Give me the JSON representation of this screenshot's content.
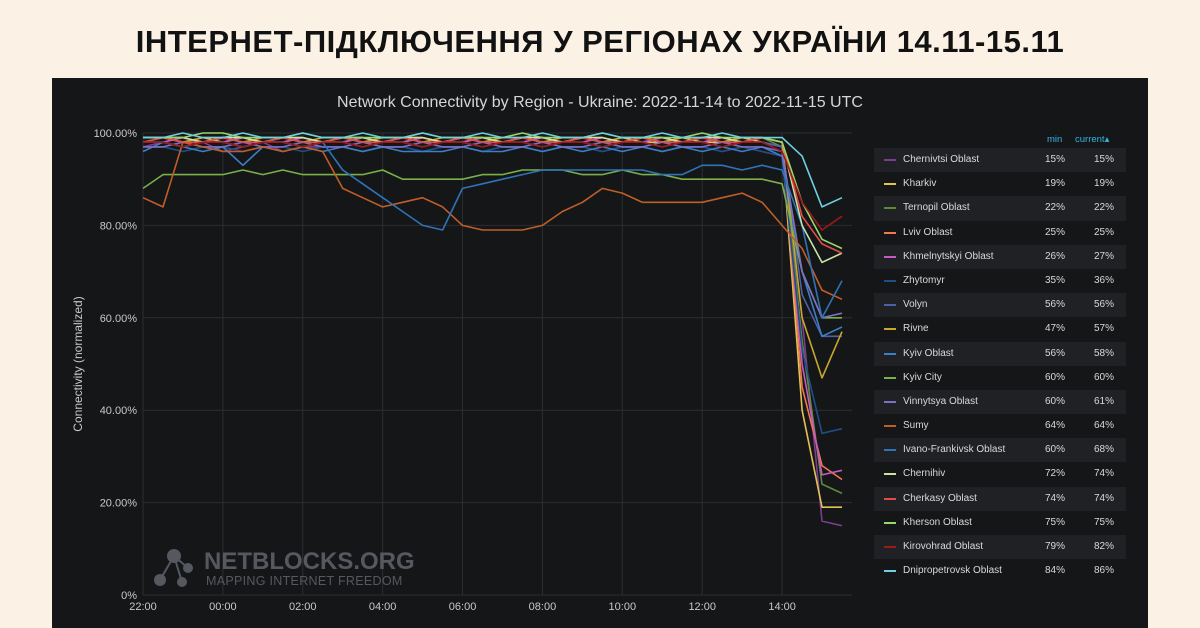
{
  "headline": "ІНТЕРНЕТ-ПІДКЛЮЧЕННЯ У РЕГІОНАХ УКРАЇНИ 14.11-15.11",
  "watermark": {
    "name": "NETBLOCKS.ORG",
    "tagline": "MAPPING INTERNET FREEDOM"
  },
  "legend_headers": {
    "min": "min",
    "current": "current▴"
  },
  "chart_data": {
    "type": "line",
    "title": "Network Connectivity by Region - Ukraine: 2022-11-14 to 2022-11-15 UTC",
    "xlabel": "",
    "ylabel": "Connectivity (normalized)",
    "ylim": [
      0,
      100
    ],
    "yticks": [
      0,
      20,
      40,
      60,
      80,
      100
    ],
    "ytick_labels": [
      "0%",
      "20.00%",
      "40.00%",
      "60.00%",
      "80.00%",
      "100.00%"
    ],
    "xlim": [
      0,
      17.75
    ],
    "xticks": [
      0,
      2,
      4,
      6,
      8,
      10,
      12,
      14,
      16
    ],
    "xtick_labels": [
      "22:00",
      "00:00",
      "02:00",
      "04:00",
      "06:00",
      "08:00",
      "10:00",
      "12:00",
      "14:00"
    ],
    "x_unit": "hours since 2022-11-14 22:00 UTC",
    "grid": true,
    "legend_placement": "right",
    "x": [
      0,
      0.5,
      1,
      1.5,
      2,
      2.5,
      3,
      3.5,
      4,
      4.5,
      5,
      5.5,
      6,
      6.5,
      7,
      7.5,
      8,
      8.5,
      9,
      9.5,
      10,
      10.5,
      11,
      11.5,
      12,
      12.5,
      13,
      13.5,
      14,
      14.5,
      15,
      15.5,
      16,
      16.5,
      17,
      17.5
    ],
    "series": [
      {
        "name": "Chernivtsi Oblast",
        "color": "#7a3e8e",
        "min": "15%",
        "current": "15%",
        "values": [
          97,
          98,
          97,
          98,
          96,
          97,
          98,
          96,
          97,
          97,
          97,
          96,
          97,
          97,
          96,
          97,
          97,
          96,
          97,
          97,
          96,
          97,
          97,
          96,
          97,
          97,
          96,
          97,
          97,
          96,
          97,
          96,
          95,
          60,
          16,
          15
        ]
      },
      {
        "name": "Kharkiv",
        "color": "#e5c154",
        "min": "19%",
        "current": "19%",
        "values": [
          99,
          99,
          98,
          99,
          98,
          99,
          98,
          98,
          99,
          98,
          98,
          99,
          98,
          98,
          99,
          98,
          98,
          99,
          98,
          99,
          98,
          98,
          99,
          98,
          99,
          98,
          98,
          99,
          98,
          98,
          99,
          98,
          97,
          40,
          19,
          19
        ]
      },
      {
        "name": "Ternopil Oblast",
        "color": "#5a8a3c",
        "min": "22%",
        "current": "22%",
        "values": [
          98,
          99,
          98,
          98,
          99,
          98,
          98,
          99,
          98,
          98,
          99,
          98,
          98,
          99,
          98,
          98,
          99,
          98,
          98,
          99,
          98,
          98,
          99,
          98,
          98,
          99,
          98,
          98,
          99,
          98,
          98,
          99,
          97,
          55,
          24,
          22
        ]
      },
      {
        "name": "Lviv Oblast",
        "color": "#ef7a4d",
        "min": "25%",
        "current": "25%",
        "values": [
          99,
          99,
          99,
          98,
          99,
          99,
          98,
          99,
          99,
          98,
          99,
          99,
          98,
          99,
          99,
          98,
          99,
          99,
          98,
          99,
          99,
          98,
          99,
          99,
          98,
          99,
          99,
          98,
          99,
          99,
          98,
          99,
          98,
          45,
          28,
          25
        ]
      },
      {
        "name": "Khmelnytskyi Oblast",
        "color": "#c35bc2",
        "min": "26%",
        "current": "27%",
        "values": [
          98,
          98,
          99,
          98,
          98,
          99,
          98,
          98,
          99,
          98,
          98,
          99,
          98,
          98,
          99,
          98,
          98,
          99,
          98,
          98,
          99,
          98,
          98,
          99,
          98,
          98,
          99,
          98,
          98,
          99,
          98,
          98,
          97,
          50,
          26,
          27
        ]
      },
      {
        "name": "Zhytomyr",
        "color": "#1f4e87",
        "min": "35%",
        "current": "36%",
        "values": [
          97,
          97,
          96,
          97,
          97,
          96,
          97,
          97,
          96,
          97,
          97,
          96,
          97,
          97,
          96,
          97,
          97,
          96,
          97,
          97,
          96,
          97,
          97,
          96,
          97,
          97,
          96,
          97,
          97,
          96,
          97,
          96,
          95,
          53,
          35,
          36
        ]
      },
      {
        "name": "Volyn",
        "color": "#5060a8",
        "min": "56%",
        "current": "56%",
        "values": [
          98,
          98,
          97,
          98,
          98,
          97,
          98,
          98,
          97,
          98,
          98,
          97,
          98,
          98,
          97,
          98,
          98,
          97,
          98,
          98,
          97,
          98,
          98,
          97,
          98,
          98,
          97,
          98,
          98,
          97,
          98,
          98,
          97,
          65,
          56,
          56
        ]
      },
      {
        "name": "Rivne",
        "color": "#c8a82e",
        "min": "47%",
        "current": "57%",
        "values": [
          99,
          99,
          98,
          99,
          99,
          98,
          99,
          99,
          98,
          99,
          99,
          98,
          99,
          99,
          98,
          99,
          99,
          98,
          99,
          99,
          98,
          99,
          99,
          98,
          99,
          99,
          98,
          99,
          99,
          98,
          99,
          99,
          98,
          60,
          47,
          57
        ]
      },
      {
        "name": "Kyiv Oblast",
        "color": "#3a80c8",
        "min": "56%",
        "current": "58%",
        "values": [
          96,
          98,
          97,
          96,
          97,
          93,
          97,
          96,
          97,
          96,
          97,
          96,
          97,
          96,
          96,
          96,
          97,
          96,
          96,
          97,
          96,
          97,
          96,
          97,
          96,
          97,
          96,
          97,
          96,
          97,
          96,
          97,
          95,
          70,
          56,
          58
        ]
      },
      {
        "name": "Kyiv City",
        "color": "#7ab04a",
        "min": "60%",
        "current": "60%",
        "values": [
          88,
          91,
          91,
          91,
          91,
          92,
          91,
          92,
          91,
          91,
          91,
          91,
          92,
          90,
          90,
          90,
          90,
          91,
          91,
          92,
          92,
          92,
          91,
          91,
          92,
          91,
          91,
          90,
          90,
          90,
          90,
          90,
          89,
          70,
          60,
          60
        ]
      },
      {
        "name": "Vinnytsya Oblast",
        "color": "#7f6fc0",
        "min": "60%",
        "current": "61%",
        "values": [
          97,
          97,
          98,
          97,
          97,
          98,
          97,
          97,
          98,
          97,
          97,
          98,
          97,
          97,
          98,
          97,
          97,
          98,
          97,
          97,
          98,
          97,
          97,
          98,
          97,
          97,
          98,
          97,
          97,
          98,
          97,
          97,
          96,
          70,
          60,
          61
        ]
      },
      {
        "name": "Sumy",
        "color": "#c05e28",
        "min": "64%",
        "current": "64%",
        "values": [
          86,
          84,
          98,
          97,
          96,
          96,
          97,
          96,
          97,
          96,
          88,
          86,
          84,
          85,
          86,
          84,
          80,
          79,
          79,
          79,
          80,
          83,
          85,
          88,
          87,
          85,
          85,
          85,
          85,
          86,
          87,
          85,
          80,
          75,
          66,
          64
        ]
      },
      {
        "name": "Ivano-Frankivsk Oblast",
        "color": "#2f73b8",
        "min": "60%",
        "current": "68%",
        "values": [
          98,
          98,
          97,
          98,
          98,
          97,
          98,
          98,
          97,
          98,
          92,
          89,
          86,
          83,
          80,
          79,
          88,
          89,
          90,
          91,
          92,
          92,
          92,
          92,
          92,
          92,
          91,
          91,
          93,
          93,
          92,
          93,
          92,
          80,
          60,
          68
        ]
      },
      {
        "name": "Chernihiv",
        "color": "#c9e3a5",
        "min": "72%",
        "current": "74%",
        "values": [
          99,
          99,
          99,
          98,
          99,
          99,
          98,
          99,
          99,
          98,
          99,
          99,
          98,
          99,
          99,
          98,
          99,
          99,
          98,
          99,
          99,
          98,
          99,
          99,
          98,
          99,
          99,
          98,
          99,
          99,
          98,
          99,
          98,
          80,
          72,
          74
        ]
      },
      {
        "name": "Cherkasy Oblast",
        "color": "#e34a4a",
        "min": "74%",
        "current": "74%",
        "values": [
          98,
          99,
          98,
          98,
          99,
          98,
          98,
          99,
          98,
          98,
          99,
          98,
          98,
          99,
          98,
          98,
          99,
          98,
          98,
          99,
          98,
          98,
          99,
          98,
          98,
          99,
          98,
          98,
          99,
          98,
          98,
          99,
          98,
          82,
          76,
          74
        ]
      },
      {
        "name": "Kherson Oblast",
        "color": "#96d86a",
        "min": "75%",
        "current": "75%",
        "values": [
          99,
          99,
          99,
          100,
          100,
          99,
          99,
          99,
          100,
          99,
          99,
          99,
          99,
          99,
          100,
          99,
          99,
          99,
          99,
          100,
          99,
          99,
          99,
          100,
          99,
          99,
          99,
          99,
          100,
          99,
          99,
          99,
          98,
          85,
          77,
          75
        ]
      },
      {
        "name": "Kirovohrad Oblast",
        "color": "#9b1a1a",
        "min": "79%",
        "current": "82%",
        "values": [
          98,
          98,
          97,
          98,
          98,
          97,
          98,
          98,
          97,
          98,
          98,
          97,
          98,
          98,
          97,
          98,
          98,
          97,
          98,
          98,
          97,
          98,
          98,
          97,
          98,
          98,
          97,
          98,
          98,
          97,
          98,
          98,
          96,
          85,
          79,
          82
        ]
      },
      {
        "name": "Dnipropetrovsk Oblast",
        "color": "#6ed0e0",
        "min": "84%",
        "current": "86%",
        "values": [
          99,
          99,
          100,
          99,
          99,
          100,
          99,
          99,
          100,
          99,
          99,
          100,
          99,
          99,
          100,
          99,
          99,
          100,
          99,
          99,
          100,
          99,
          99,
          100,
          99,
          99,
          100,
          99,
          99,
          100,
          99,
          99,
          99,
          95,
          84,
          86
        ]
      }
    ]
  }
}
